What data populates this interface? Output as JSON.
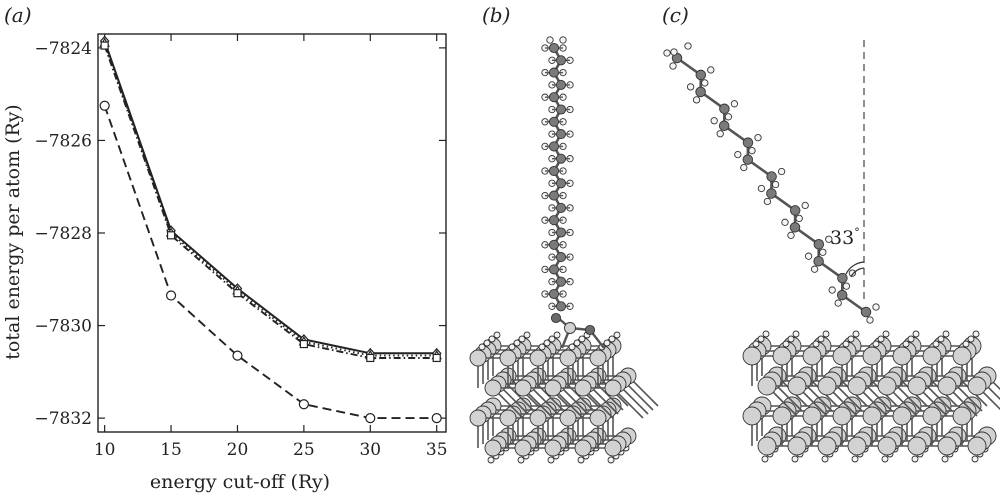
{
  "panels": {
    "a": "(a)",
    "b": "(b)",
    "c": "(c)"
  },
  "chart_data": {
    "type": "line",
    "title": "",
    "xlabel": "energy cut-off (Ry)",
    "ylabel": "total energy per atom (Ry)",
    "x": [
      10,
      15,
      20,
      25,
      30,
      35
    ],
    "xlim": [
      9.5,
      35.7
    ],
    "ylim": [
      -7832.3,
      -7823.7
    ],
    "xticks": [
      10,
      15,
      20,
      25,
      30,
      35
    ],
    "yticks": [
      -7824,
      -7826,
      -7828,
      -7830,
      -7832
    ],
    "grid": false,
    "series": [
      {
        "style": "solid",
        "marker": "diamond",
        "color": "#222222",
        "values": [
          -7823.85,
          -7827.95,
          -7829.2,
          -7830.3,
          -7830.6,
          -7830.6
        ]
      },
      {
        "style": "dotted",
        "marker": "triangle",
        "color": "#222222",
        "values": [
          -7823.9,
          -7828.0,
          -7829.25,
          -7830.35,
          -7830.65,
          -7830.65
        ]
      },
      {
        "style": "dashdot",
        "marker": "square",
        "color": "#222222",
        "values": [
          -7823.95,
          -7828.05,
          -7829.3,
          -7830.4,
          -7830.7,
          -7830.7
        ]
      },
      {
        "style": "dashed",
        "marker": "circle",
        "color": "#222222",
        "values": [
          -7825.25,
          -7829.35,
          -7830.65,
          -7831.7,
          -7832.0,
          -7832.0
        ]
      }
    ]
  },
  "annotation": {
    "angle_value": "33",
    "angle_unit": "°"
  },
  "colors": {
    "atom_c": "#7a7a7a",
    "atom_h": "#f4f4f4",
    "atom_si": "#d2d2d2",
    "atom_o": "#6a6a6a",
    "stroke": "#333333"
  }
}
